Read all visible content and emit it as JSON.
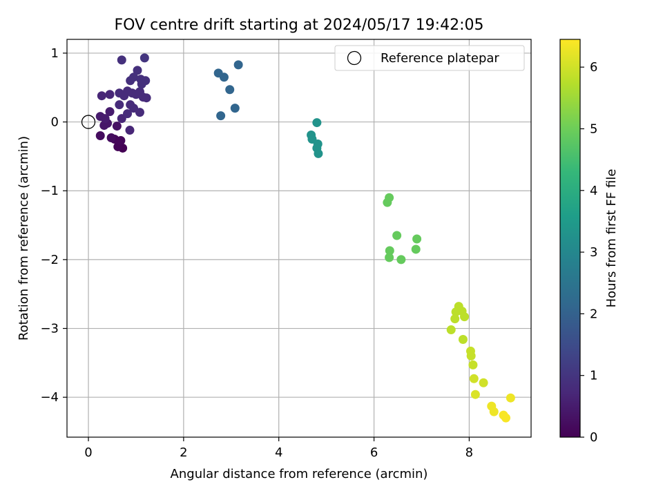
{
  "chart_data": {
    "type": "scatter",
    "title": "FOV centre drift starting at 2024/05/17 19:42:05",
    "xlabel": "Angular distance from reference (arcmin)",
    "ylabel": "Rotation from reference (arcmin)",
    "xlim": [
      -0.45,
      9.3
    ],
    "ylim": [
      -4.58,
      1.2
    ],
    "xticks": [
      0,
      2,
      4,
      6,
      8
    ],
    "xtick_labels": [
      "0",
      "2",
      "4",
      "6",
      "8"
    ],
    "yticks": [
      1,
      0,
      -1,
      -2,
      -3,
      -4
    ],
    "ytick_labels": [
      "1",
      "0",
      "−1",
      "−2",
      "−3",
      "−4"
    ],
    "grid": true,
    "legend": {
      "position": "top-right",
      "entries": [
        "Reference platepar"
      ]
    },
    "reference_point": {
      "x": 0,
      "y": 0,
      "marker": "open-circle"
    },
    "colorbar": {
      "label": "Hours from first FF file",
      "min": 0,
      "max": 6.45,
      "ticks": [
        0,
        1,
        2,
        3,
        4,
        5,
        6
      ],
      "tick_labels": [
        "0",
        "1",
        "2",
        "3",
        "4",
        "5",
        "6"
      ],
      "colormap": "viridis"
    },
    "colormap_stops": [
      "#440154",
      "#482878",
      "#3e4989",
      "#31688e",
      "#26828e",
      "#1f9e89",
      "#35b779",
      "#6ece58",
      "#b5de2b",
      "#fde725"
    ],
    "points": [
      {
        "x": 0.7,
        "y": 0.9,
        "c": 0.9
      },
      {
        "x": 1.18,
        "y": 0.93,
        "c": 1.0
      },
      {
        "x": 1.03,
        "y": 0.75,
        "c": 0.9
      },
      {
        "x": 0.95,
        "y": 0.65,
        "c": 0.9
      },
      {
        "x": 0.88,
        "y": 0.6,
        "c": 0.9
      },
      {
        "x": 1.1,
        "y": 0.62,
        "c": 0.9
      },
      {
        "x": 1.2,
        "y": 0.6,
        "c": 0.9
      },
      {
        "x": 1.12,
        "y": 0.55,
        "c": 0.9
      },
      {
        "x": 0.65,
        "y": 0.42,
        "c": 0.8
      },
      {
        "x": 0.75,
        "y": 0.38,
        "c": 0.8
      },
      {
        "x": 0.82,
        "y": 0.45,
        "c": 0.8
      },
      {
        "x": 0.92,
        "y": 0.42,
        "c": 0.8
      },
      {
        "x": 1.0,
        "y": 0.4,
        "c": 0.8
      },
      {
        "x": 1.08,
        "y": 0.44,
        "c": 0.8
      },
      {
        "x": 1.15,
        "y": 0.36,
        "c": 0.8
      },
      {
        "x": 1.22,
        "y": 0.35,
        "c": 0.8
      },
      {
        "x": 0.28,
        "y": 0.38,
        "c": 0.7
      },
      {
        "x": 0.45,
        "y": 0.4,
        "c": 0.7
      },
      {
        "x": 0.65,
        "y": 0.25,
        "c": 0.8
      },
      {
        "x": 0.88,
        "y": 0.25,
        "c": 0.8
      },
      {
        "x": 0.95,
        "y": 0.2,
        "c": 0.8
      },
      {
        "x": 0.82,
        "y": 0.12,
        "c": 0.8
      },
      {
        "x": 1.08,
        "y": 0.14,
        "c": 0.8
      },
      {
        "x": 0.7,
        "y": 0.05,
        "c": 0.7
      },
      {
        "x": 0.87,
        "y": -0.12,
        "c": 0.7
      },
      {
        "x": 0.25,
        "y": 0.08,
        "c": 0.5
      },
      {
        "x": 0.35,
        "y": 0.05,
        "c": 0.5
      },
      {
        "x": 0.45,
        "y": 0.15,
        "c": 0.5
      },
      {
        "x": 0.4,
        "y": -0.02,
        "c": 0.4
      },
      {
        "x": 0.33,
        "y": -0.05,
        "c": 0.4
      },
      {
        "x": 0.6,
        "y": -0.06,
        "c": 0.3
      },
      {
        "x": 0.25,
        "y": -0.2,
        "c": 0.2
      },
      {
        "x": 0.48,
        "y": -0.23,
        "c": 0.2
      },
      {
        "x": 0.55,
        "y": -0.25,
        "c": 0.1
      },
      {
        "x": 0.68,
        "y": -0.27,
        "c": 0.1
      },
      {
        "x": 0.62,
        "y": -0.36,
        "c": 0.05
      },
      {
        "x": 0.72,
        "y": -0.38,
        "c": 0.0
      },
      {
        "x": 2.73,
        "y": 0.71,
        "c": 2.1
      },
      {
        "x": 2.85,
        "y": 0.65,
        "c": 2.1
      },
      {
        "x": 3.15,
        "y": 0.83,
        "c": 2.1
      },
      {
        "x": 2.97,
        "y": 0.47,
        "c": 2.1
      },
      {
        "x": 2.78,
        "y": 0.09,
        "c": 2.1
      },
      {
        "x": 3.08,
        "y": 0.2,
        "c": 2.1
      },
      {
        "x": 4.8,
        "y": -0.01,
        "c": 3.3
      },
      {
        "x": 4.68,
        "y": -0.19,
        "c": 3.3
      },
      {
        "x": 4.7,
        "y": -0.25,
        "c": 3.3
      },
      {
        "x": 4.82,
        "y": -0.32,
        "c": 3.3
      },
      {
        "x": 4.8,
        "y": -0.38,
        "c": 3.3
      },
      {
        "x": 4.83,
        "y": -0.46,
        "c": 3.3
      },
      {
        "x": 6.32,
        "y": -1.1,
        "c": 4.9
      },
      {
        "x": 6.28,
        "y": -1.17,
        "c": 4.9
      },
      {
        "x": 6.48,
        "y": -1.65,
        "c": 4.9
      },
      {
        "x": 6.9,
        "y": -1.7,
        "c": 4.9
      },
      {
        "x": 6.88,
        "y": -1.85,
        "c": 4.9
      },
      {
        "x": 6.33,
        "y": -1.87,
        "c": 4.9
      },
      {
        "x": 6.32,
        "y": -1.97,
        "c": 4.9
      },
      {
        "x": 6.57,
        "y": -2.0,
        "c": 4.9
      },
      {
        "x": 7.78,
        "y": -2.68,
        "c": 5.8
      },
      {
        "x": 7.72,
        "y": -2.76,
        "c": 5.8
      },
      {
        "x": 7.85,
        "y": -2.75,
        "c": 5.8
      },
      {
        "x": 7.7,
        "y": -2.86,
        "c": 5.8
      },
      {
        "x": 7.9,
        "y": -2.83,
        "c": 5.8
      },
      {
        "x": 7.62,
        "y": -3.02,
        "c": 5.8
      },
      {
        "x": 7.87,
        "y": -3.16,
        "c": 5.8
      },
      {
        "x": 8.03,
        "y": -3.33,
        "c": 5.9
      },
      {
        "x": 8.04,
        "y": -3.4,
        "c": 5.9
      },
      {
        "x": 8.08,
        "y": -3.53,
        "c": 5.9
      },
      {
        "x": 8.1,
        "y": -3.73,
        "c": 6.0
      },
      {
        "x": 8.3,
        "y": -3.79,
        "c": 6.0
      },
      {
        "x": 8.13,
        "y": -3.96,
        "c": 6.1
      },
      {
        "x": 8.87,
        "y": -4.01,
        "c": 6.3
      },
      {
        "x": 8.47,
        "y": -4.13,
        "c": 6.3
      },
      {
        "x": 8.52,
        "y": -4.21,
        "c": 6.3
      },
      {
        "x": 8.72,
        "y": -4.26,
        "c": 6.4
      },
      {
        "x": 8.77,
        "y": -4.3,
        "c": 6.4
      }
    ]
  }
}
